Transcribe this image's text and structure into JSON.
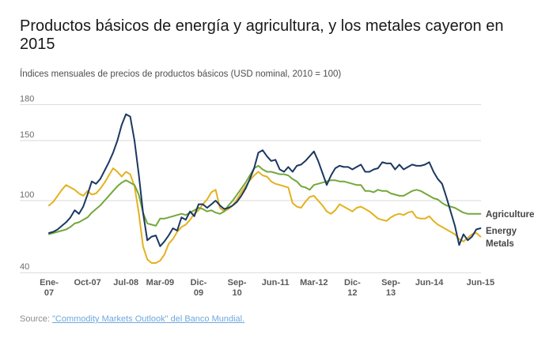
{
  "header": {
    "title": "Productos básicos de energía y agricultura, y los metales cayeron en 2015",
    "subtitle": "Índices mensuales de precios de productos básicos (USD nominal, 2010 = 100)"
  },
  "source": {
    "label": "Source:",
    "link_text": "\"Commodity Markets Outlook\" del Banco Mundial."
  },
  "colors": {
    "agriculture": "#73a83c",
    "energy": "#1b3862",
    "metals": "#e3b21e",
    "gridline": "#d9d9d9",
    "link": "#6fa8dc"
  },
  "chart_data": {
    "type": "line",
    "title": "Productos básicos de energía y agricultura, y los metales cayeron en 2015",
    "subtitle": "Índices mensuales de precios de productos básicos (USD nominal, 2010 = 100)",
    "frequency": "monthly",
    "x_start": "2007-01",
    "x_end": "2015-06",
    "grid": "horizontal-only",
    "legend_position": "right",
    "ylim": [
      40,
      180
    ],
    "y_ticks": [
      180,
      150,
      100,
      40
    ],
    "x_tick_labels": [
      {
        "label": "Ene-07",
        "lines": [
          "Ene-",
          "07"
        ],
        "month": 0
      },
      {
        "label": "Oct-07",
        "lines": [
          "Oct-07"
        ],
        "month": 9
      },
      {
        "label": "Jul-08",
        "lines": [
          "Jul-08"
        ],
        "month": 18
      },
      {
        "label": "Mar-09",
        "lines": [
          "Mar-09"
        ],
        "month": 26
      },
      {
        "label": "Dic-09",
        "lines": [
          "Dic-",
          "09"
        ],
        "month": 35
      },
      {
        "label": "Sep-10",
        "lines": [
          "Sep-",
          "10"
        ],
        "month": 44
      },
      {
        "label": "Jun-11",
        "lines": [
          "Jun-11"
        ],
        "month": 53
      },
      {
        "label": "Mar-12",
        "lines": [
          "Mar-12"
        ],
        "month": 62
      },
      {
        "label": "Dic-12",
        "lines": [
          "Dic-",
          "12"
        ],
        "month": 71
      },
      {
        "label": "Sep-13",
        "lines": [
          "Sep-",
          "13"
        ],
        "month": 80
      },
      {
        "label": "Jun-14",
        "lines": [
          "Jun-14"
        ],
        "month": 89
      },
      {
        "label": "Jun-15",
        "lines": [
          "Jun-15"
        ],
        "month": 101
      }
    ],
    "legend": [
      "Agriculture",
      "Energy",
      "Metals"
    ],
    "series": [
      {
        "name": "Agriculture",
        "color": "#73a83c",
        "values": [
          72,
          73,
          74,
          75,
          76,
          78,
          81,
          82,
          84,
          86,
          90,
          93,
          96,
          100,
          104,
          108,
          112,
          115,
          117,
          115,
          113,
          105,
          90,
          81,
          80,
          79,
          85,
          85,
          86,
          87,
          88,
          89,
          88,
          90,
          92,
          94,
          93,
          91,
          92,
          90,
          89,
          91,
          96,
          100,
          105,
          110,
          115,
          121,
          127,
          129,
          126,
          124,
          124,
          123,
          122,
          122,
          121,
          118,
          116,
          112,
          111,
          109,
          113,
          114,
          115,
          116,
          117,
          117,
          116,
          116,
          115,
          114,
          113,
          113,
          108,
          108,
          107,
          109,
          108,
          108,
          106,
          105,
          104,
          104,
          106,
          108,
          109,
          108,
          106,
          104,
          102,
          101,
          98,
          96,
          95,
          94,
          92,
          90,
          89,
          89,
          89,
          89
        ]
      },
      {
        "name": "Energy",
        "color": "#1b3862",
        "values": [
          73,
          74,
          76,
          79,
          82,
          86,
          92,
          89,
          95,
          105,
          116,
          114,
          118,
          125,
          132,
          140,
          150,
          163,
          172,
          170,
          150,
          122,
          90,
          67,
          70,
          71,
          62,
          66,
          71,
          77,
          75,
          86,
          84,
          91,
          87,
          97,
          97,
          94,
          97,
          100,
          96,
          93,
          94,
          96,
          99,
          104,
          110,
          118,
          127,
          140,
          142,
          137,
          133,
          134,
          126,
          124,
          128,
          124,
          129,
          130,
          133,
          137,
          141,
          133,
          123,
          113,
          121,
          127,
          129,
          128,
          128,
          126,
          128,
          130,
          124,
          124,
          126,
          127,
          132,
          131,
          131,
          126,
          130,
          126,
          128,
          130,
          129,
          129,
          130,
          132,
          124,
          118,
          114,
          103,
          91,
          79,
          63,
          72,
          67,
          70,
          76,
          77
        ]
      },
      {
        "name": "Metals",
        "color": "#e3b21e",
        "values": [
          96,
          99,
          104,
          109,
          113,
          111,
          109,
          106,
          104,
          108,
          105,
          106,
          110,
          115,
          121,
          127,
          124,
          120,
          124,
          122,
          112,
          90,
          62,
          51,
          48,
          48,
          50,
          55,
          64,
          68,
          74,
          78,
          80,
          84,
          89,
          92,
          97,
          101,
          107,
          109,
          94,
          91,
          93,
          96,
          101,
          107,
          112,
          117,
          121,
          124,
          121,
          120,
          116,
          114,
          113,
          112,
          111,
          98,
          95,
          94,
          99,
          103,
          104,
          100,
          96,
          91,
          89,
          92,
          97,
          95,
          93,
          91,
          94,
          95,
          93,
          91,
          88,
          85,
          84,
          83,
          86,
          88,
          89,
          88,
          90,
          91,
          86,
          85,
          85,
          87,
          83,
          80,
          78,
          76,
          74,
          72,
          68,
          66,
          69,
          72,
          73,
          70
        ]
      }
    ]
  }
}
